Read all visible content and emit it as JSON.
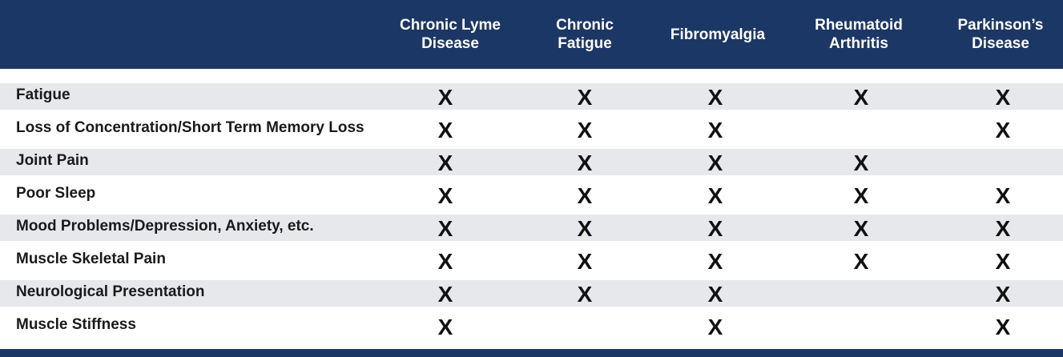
{
  "columns": [
    {
      "key": "lyme",
      "label": "Chronic Lyme\nDisease"
    },
    {
      "key": "fatigue",
      "label": "Chronic\nFatigue"
    },
    {
      "key": "fibro",
      "label": "Fibromyalgia"
    },
    {
      "key": "ra",
      "label": "Rheumatoid\nArthritis"
    },
    {
      "key": "parkinsons",
      "label": "Parkinson’s\nDisease"
    }
  ],
  "mark_symbol": "X",
  "rows": [
    {
      "label": "Fatigue",
      "marks": [
        true,
        true,
        true,
        true,
        true
      ]
    },
    {
      "label": "Loss of Concentration/Short Term Memory Loss",
      "marks": [
        true,
        true,
        true,
        false,
        true
      ]
    },
    {
      "label": "Joint Pain",
      "marks": [
        true,
        true,
        true,
        true,
        false
      ]
    },
    {
      "label": "Poor Sleep",
      "marks": [
        true,
        true,
        true,
        true,
        true
      ]
    },
    {
      "label": "Mood Problems/Depression, Anxiety, etc.",
      "marks": [
        true,
        true,
        true,
        true,
        true
      ]
    },
    {
      "label": "Muscle Skeletal Pain",
      "marks": [
        true,
        true,
        true,
        true,
        true
      ]
    },
    {
      "label": "Neurological Presentation",
      "marks": [
        true,
        true,
        true,
        false,
        true
      ]
    },
    {
      "label": "Muscle Stiffness",
      "marks": [
        true,
        false,
        true,
        false,
        true
      ]
    }
  ],
  "colors": {
    "header_bg": "#1b3766",
    "header_text": "#ffffff",
    "row_shade": "#e6e8ec",
    "text": "#1a1a1a"
  }
}
